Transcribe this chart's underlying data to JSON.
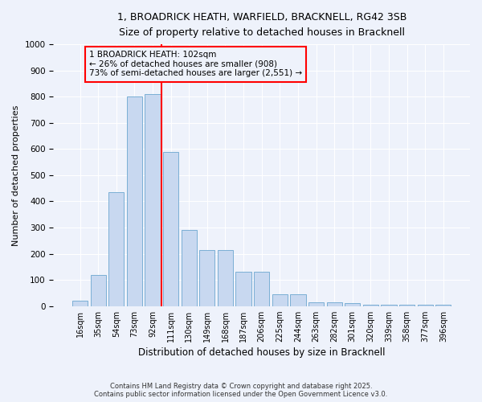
{
  "title_line1": "1, BROADRICK HEATH, WARFIELD, BRACKNELL, RG42 3SB",
  "title_line2": "Size of property relative to detached houses in Bracknell",
  "xlabel": "Distribution of detached houses by size in Bracknell",
  "ylabel": "Number of detached properties",
  "categories": [
    "16sqm",
    "35sqm",
    "54sqm",
    "73sqm",
    "92sqm",
    "111sqm",
    "130sqm",
    "149sqm",
    "168sqm",
    "187sqm",
    "206sqm",
    "225sqm",
    "244sqm",
    "263sqm",
    "282sqm",
    "301sqm",
    "320sqm",
    "339sqm",
    "358sqm",
    "377sqm",
    "396sqm"
  ],
  "bar_heights": [
    20,
    120,
    435,
    800,
    810,
    590,
    290,
    215,
    215,
    130,
    130,
    45,
    45,
    15,
    15,
    10,
    5,
    5,
    5,
    5,
    5
  ],
  "bar_color": "#c8d8f0",
  "bar_edge_color": "#7bafd4",
  "background_color": "#eef2fb",
  "grid_color": "#ffffff",
  "property_line_color": "red",
  "annotation_text": "1 BROADRICK HEATH: 102sqm\n← 26% of detached houses are smaller (908)\n73% of semi-detached houses are larger (2,551) →",
  "annotation_box_edge_color": "red",
  "annotation_box_face_color": "#eef2fb",
  "ylim": [
    0,
    1000
  ],
  "yticks": [
    0,
    100,
    200,
    300,
    400,
    500,
    600,
    700,
    800,
    900,
    1000
  ],
  "footer_line1": "Contains HM Land Registry data © Crown copyright and database right 2025.",
  "footer_line2": "Contains public sector information licensed under the Open Government Licence v3.0."
}
